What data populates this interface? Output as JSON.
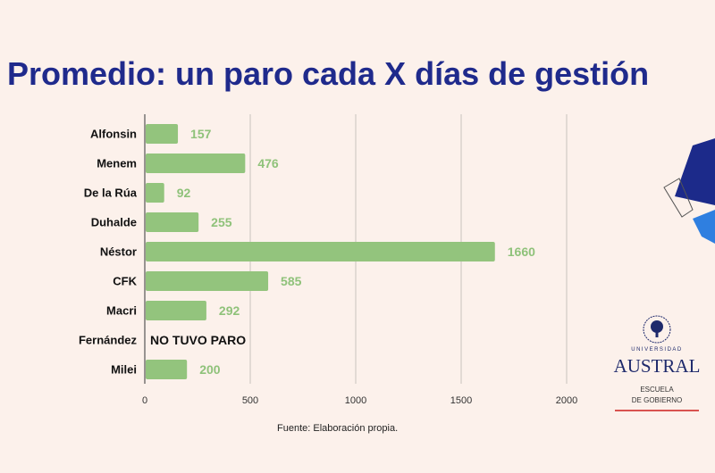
{
  "title": "Promedio: un paro cada X días de gestión",
  "source": "Fuente: Elaboración propia.",
  "logo": {
    "university": "UNIVERSIDAD",
    "name": "AUSTRAL",
    "school_line1": "ESCUELA",
    "school_line2": "DE GOBIERNO"
  },
  "colors": {
    "bar": "#93c47d",
    "label": "#8fc27a",
    "title": "#1f2a8c"
  },
  "chart_data": {
    "type": "bar",
    "orientation": "horizontal",
    "title": "Promedio: un paro cada X días de gestión",
    "categories": [
      "Alfonsin",
      "Menem",
      "De la Rúa",
      "Duhalde",
      "Néstor",
      "CFK",
      "Macri",
      "Fernández",
      "Milei"
    ],
    "values": [
      157,
      476,
      92,
      255,
      1660,
      585,
      292,
      null,
      200
    ],
    "annotations": [
      {
        "category": "Fernández",
        "text": "NO TUVO PARO"
      }
    ],
    "xlim": [
      0,
      2000
    ],
    "xticks": [
      0,
      500,
      1000,
      1500,
      2000
    ],
    "grid": true,
    "xlabel": "",
    "ylabel": ""
  }
}
